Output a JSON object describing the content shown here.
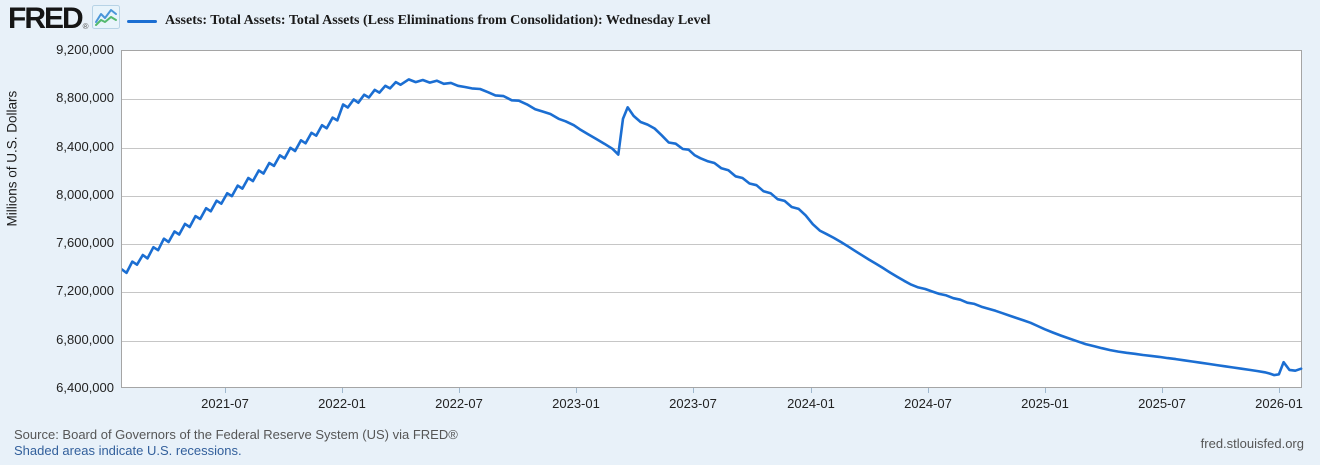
{
  "header": {
    "logo_text": "FRED",
    "logo_registered": "®",
    "legend_label": "Assets: Total Assets: Total Assets (Less Eliminations from Consolidation): Wednesday Level"
  },
  "colors": {
    "line": "#1b6ed2",
    "page_bg": "#e8f1f9",
    "plot_bg": "#ffffff",
    "gridline": "#c6c6c6",
    "link": "#33609c",
    "logo_icon_blue": "#4a96d9",
    "logo_icon_green": "#53b96e"
  },
  "footer": {
    "source": "Source: Board of Governors of the Federal Reserve System (US) via FRED®",
    "recession_note": "Shaded areas indicate U.S. recessions.",
    "site": "fred.stlouisfed.org"
  },
  "chart_data": {
    "type": "line",
    "title": "Assets: Total Assets: Total Assets (Less Eliminations from Consolidation): Wednesday Level",
    "xlabel": "",
    "ylabel": "Millions of U.S. Dollars",
    "grid": true,
    "legend_position": "top",
    "x_range": [
      2021.056,
      2026.098
    ],
    "ylim": [
      6400000,
      9200000
    ],
    "y_ticks": [
      9200000,
      8800000,
      8400000,
      8000000,
      7600000,
      7200000,
      6800000,
      6400000
    ],
    "x_ticks": [
      {
        "date": 2021.5,
        "label": "2021-07"
      },
      {
        "date": 2022.0,
        "label": "2022-01"
      },
      {
        "date": 2022.5,
        "label": "2022-07"
      },
      {
        "date": 2023.0,
        "label": "2023-01"
      },
      {
        "date": 2023.5,
        "label": "2023-07"
      },
      {
        "date": 2024.0,
        "label": "2024-01"
      },
      {
        "date": 2024.5,
        "label": "2024-07"
      },
      {
        "date": 2025.0,
        "label": "2025-01"
      },
      {
        "date": 2025.5,
        "label": "2025-07"
      },
      {
        "date": 2026.0,
        "label": "2026-01"
      }
    ],
    "series": [
      {
        "name": "Assets: Total Assets: Total Assets (Less Eliminations from Consolidation): Wednesday Level",
        "color": "#1b6ed2",
        "points": [
          [
            2021.056,
            7390000
          ],
          [
            2021.075,
            7362000
          ],
          [
            2021.1,
            7455000
          ],
          [
            2021.12,
            7430000
          ],
          [
            2021.145,
            7510000
          ],
          [
            2021.165,
            7482000
          ],
          [
            2021.19,
            7575000
          ],
          [
            2021.21,
            7550000
          ],
          [
            2021.235,
            7645000
          ],
          [
            2021.255,
            7618000
          ],
          [
            2021.28,
            7705000
          ],
          [
            2021.3,
            7680000
          ],
          [
            2021.325,
            7768000
          ],
          [
            2021.345,
            7742000
          ],
          [
            2021.37,
            7832000
          ],
          [
            2021.39,
            7808000
          ],
          [
            2021.415,
            7898000
          ],
          [
            2021.435,
            7872000
          ],
          [
            2021.46,
            7960000
          ],
          [
            2021.48,
            7935000
          ],
          [
            2021.505,
            8022000
          ],
          [
            2021.525,
            7998000
          ],
          [
            2021.55,
            8085000
          ],
          [
            2021.57,
            8060000
          ],
          [
            2021.595,
            8148000
          ],
          [
            2021.615,
            8122000
          ],
          [
            2021.64,
            8210000
          ],
          [
            2021.66,
            8185000
          ],
          [
            2021.685,
            8272000
          ],
          [
            2021.705,
            8248000
          ],
          [
            2021.73,
            8335000
          ],
          [
            2021.75,
            8310000
          ],
          [
            2021.775,
            8398000
          ],
          [
            2021.795,
            8372000
          ],
          [
            2021.82,
            8460000
          ],
          [
            2021.84,
            8435000
          ],
          [
            2021.865,
            8522000
          ],
          [
            2021.885,
            8498000
          ],
          [
            2021.91,
            8585000
          ],
          [
            2021.93,
            8560000
          ],
          [
            2021.955,
            8648000
          ],
          [
            2021.975,
            8625000
          ],
          [
            2022.0,
            8757000
          ],
          [
            2022.02,
            8732000
          ],
          [
            2022.045,
            8798000
          ],
          [
            2022.065,
            8772000
          ],
          [
            2022.09,
            8838000
          ],
          [
            2022.11,
            8815000
          ],
          [
            2022.135,
            8878000
          ],
          [
            2022.155,
            8855000
          ],
          [
            2022.18,
            8912000
          ],
          [
            2022.2,
            8890000
          ],
          [
            2022.225,
            8942000
          ],
          [
            2022.245,
            8920000
          ],
          [
            2022.28,
            8965000
          ],
          [
            2022.31,
            8942000
          ],
          [
            2022.34,
            8960000
          ],
          [
            2022.37,
            8938000
          ],
          [
            2022.4,
            8954000
          ],
          [
            2022.43,
            8928000
          ],
          [
            2022.46,
            8936000
          ],
          [
            2022.49,
            8912000
          ],
          [
            2022.52,
            8902000
          ],
          [
            2022.55,
            8890000
          ],
          [
            2022.585,
            8885000
          ],
          [
            2022.62,
            8858000
          ],
          [
            2022.65,
            8832000
          ],
          [
            2022.685,
            8826000
          ],
          [
            2022.72,
            8792000
          ],
          [
            2022.75,
            8788000
          ],
          [
            2022.785,
            8758000
          ],
          [
            2022.82,
            8718000
          ],
          [
            2022.85,
            8700000
          ],
          [
            2022.885,
            8678000
          ],
          [
            2022.92,
            8638000
          ],
          [
            2022.95,
            8618000
          ],
          [
            2022.985,
            8585000
          ],
          [
            2023.01,
            8552000
          ],
          [
            2023.045,
            8512000
          ],
          [
            2023.08,
            8472000
          ],
          [
            2023.115,
            8432000
          ],
          [
            2023.15,
            8390000
          ],
          [
            2023.175,
            8342000
          ],
          [
            2023.195,
            8639000
          ],
          [
            2023.215,
            8734000
          ],
          [
            2023.24,
            8662000
          ],
          [
            2023.27,
            8612000
          ],
          [
            2023.3,
            8590000
          ],
          [
            2023.33,
            8558000
          ],
          [
            2023.36,
            8502000
          ],
          [
            2023.39,
            8442000
          ],
          [
            2023.42,
            8432000
          ],
          [
            2023.45,
            8388000
          ],
          [
            2023.475,
            8382000
          ],
          [
            2023.5,
            8338000
          ],
          [
            2023.525,
            8312000
          ],
          [
            2023.555,
            8288000
          ],
          [
            2023.585,
            8272000
          ],
          [
            2023.615,
            8228000
          ],
          [
            2023.645,
            8212000
          ],
          [
            2023.675,
            8162000
          ],
          [
            2023.705,
            8148000
          ],
          [
            2023.735,
            8102000
          ],
          [
            2023.765,
            8088000
          ],
          [
            2023.795,
            8038000
          ],
          [
            2023.825,
            8022000
          ],
          [
            2023.855,
            7972000
          ],
          [
            2023.885,
            7958000
          ],
          [
            2023.915,
            7908000
          ],
          [
            2023.945,
            7892000
          ],
          [
            2023.975,
            7838000
          ],
          [
            2024.005,
            7765000
          ],
          [
            2024.035,
            7712000
          ],
          [
            2024.065,
            7682000
          ],
          [
            2024.095,
            7652000
          ],
          [
            2024.125,
            7618000
          ],
          [
            2024.155,
            7582000
          ],
          [
            2024.185,
            7545000
          ],
          [
            2024.215,
            7508000
          ],
          [
            2024.245,
            7472000
          ],
          [
            2024.275,
            7438000
          ],
          [
            2024.305,
            7402000
          ],
          [
            2024.335,
            7365000
          ],
          [
            2024.365,
            7330000
          ],
          [
            2024.395,
            7296000
          ],
          [
            2024.425,
            7265000
          ],
          [
            2024.455,
            7242000
          ],
          [
            2024.485,
            7228000
          ],
          [
            2024.515,
            7208000
          ],
          [
            2024.545,
            7188000
          ],
          [
            2024.575,
            7175000
          ],
          [
            2024.605,
            7152000
          ],
          [
            2024.635,
            7140000
          ],
          [
            2024.665,
            7115000
          ],
          [
            2024.695,
            7105000
          ],
          [
            2024.725,
            7082000
          ],
          [
            2024.755,
            7065000
          ],
          [
            2024.785,
            7048000
          ],
          [
            2024.815,
            7028000
          ],
          [
            2024.845,
            7008000
          ],
          [
            2024.875,
            6988000
          ],
          [
            2024.905,
            6968000
          ],
          [
            2024.935,
            6948000
          ],
          [
            2024.965,
            6922000
          ],
          [
            2024.995,
            6895000
          ],
          [
            2025.03,
            6868000
          ],
          [
            2025.065,
            6842000
          ],
          [
            2025.1,
            6818000
          ],
          [
            2025.135,
            6795000
          ],
          [
            2025.17,
            6772000
          ],
          [
            2025.205,
            6755000
          ],
          [
            2025.24,
            6738000
          ],
          [
            2025.275,
            6722000
          ],
          [
            2025.31,
            6710000
          ],
          [
            2025.345,
            6700000
          ],
          [
            2025.38,
            6692000
          ],
          [
            2025.415,
            6682000
          ],
          [
            2025.45,
            6674000
          ],
          [
            2025.485,
            6666000
          ],
          [
            2025.52,
            6656000
          ],
          [
            2025.555,
            6648000
          ],
          [
            2025.59,
            6638000
          ],
          [
            2025.625,
            6628000
          ],
          [
            2025.66,
            6618000
          ],
          [
            2025.695,
            6608000
          ],
          [
            2025.73,
            6598000
          ],
          [
            2025.765,
            6588000
          ],
          [
            2025.8,
            6578000
          ],
          [
            2025.835,
            6568000
          ],
          [
            2025.87,
            6558000
          ],
          [
            2025.905,
            6548000
          ],
          [
            2025.935,
            6538000
          ],
          [
            2025.955,
            6528000
          ],
          [
            2025.975,
            6515000
          ],
          [
            2025.995,
            6522000
          ],
          [
            2026.015,
            6622000
          ],
          [
            2026.04,
            6558000
          ],
          [
            2026.065,
            6552000
          ],
          [
            2026.09,
            6568000
          ]
        ]
      }
    ]
  }
}
